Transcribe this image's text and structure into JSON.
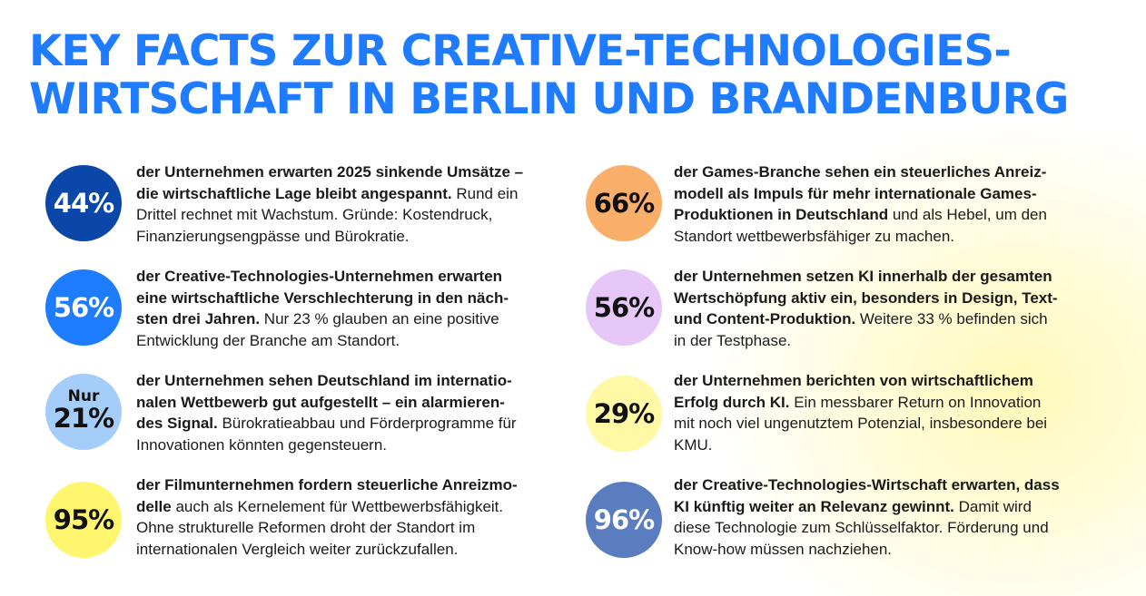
{
  "title": {
    "line1": "KEY FACTS ZUR CREATIVE-TECHNOLOGIES-",
    "line2": "WIRTSCHAFT IN BERLIN UND BRANDENBURG"
  },
  "facts": [
    {
      "value": "44%",
      "prefix": "",
      "circle_color": "#0a47a9",
      "value_color": "#ffffff",
      "lines": [
        {
          "bold": "der Unternehmen erwarten 2025 sinkende Umsätze –",
          "normal": ""
        },
        {
          "bold": "die wirtschaftliche Lage bleibt angespannt.",
          "normal": " Rund ein"
        },
        {
          "bold": "",
          "normal": "Drittel rechnet mit Wachstum. Gründe: Kostendruck,"
        },
        {
          "bold": "",
          "normal": "Finanzierungsengpässe und Bürokratie."
        }
      ]
    },
    {
      "value": "56%",
      "prefix": "",
      "circle_color": "#1e7cff",
      "value_color": "#ffffff",
      "lines": [
        {
          "bold": "der Creative-Technologies-Unternehmen erwarten",
          "normal": ""
        },
        {
          "bold": "eine wirtschaftliche Verschlechterung in den näch-",
          "normal": ""
        },
        {
          "bold": "sten drei Jahren.",
          "normal": " Nur 23 % glauben an eine positive"
        },
        {
          "bold": "",
          "normal": "Entwicklung der Branche am Standort."
        }
      ]
    },
    {
      "value": "21%",
      "prefix": "Nur",
      "circle_color": "#a5cdfa",
      "value_color": "#111111",
      "lines": [
        {
          "bold": "der Unternehmen sehen Deutschland im internatio-",
          "normal": ""
        },
        {
          "bold": "nalen Wettbewerb gut aufgestellt – ein alarmieren-",
          "normal": ""
        },
        {
          "bold": "des Signal.",
          "normal": " Bürokratieabbau und Förderprogramme für"
        },
        {
          "bold": "",
          "normal": "Innovationen könnten gegensteuern."
        }
      ]
    },
    {
      "value": "95%",
      "prefix": "",
      "circle_color": "#fff56e",
      "value_color": "#111111",
      "lines": [
        {
          "bold": "der Filmunternehmen fordern steuerliche Anreizmo-",
          "normal": ""
        },
        {
          "bold": "delle",
          "normal": " auch als Kernelement für Wettbewerbsfähigkeit."
        },
        {
          "bold": "",
          "normal": "Ohne strukturelle Reformen droht der Standort im"
        },
        {
          "bold": "",
          "normal": "internationalen Vergleich weiter zurückzufallen."
        }
      ]
    },
    {
      "value": "66%",
      "prefix": "",
      "circle_color": "#f9ae6a",
      "value_color": "#111111",
      "lines": [
        {
          "bold": "der Games-Branche sehen ein steuerliches Anreiz-",
          "normal": ""
        },
        {
          "bold": "modell als Impuls für mehr internationale Games-",
          "normal": ""
        },
        {
          "bold": "Produktionen in Deutschland",
          "normal": " und als Hebel, um den"
        },
        {
          "bold": "",
          "normal": "Standort wettbewerbsfähiger zu machen."
        }
      ]
    },
    {
      "value": "56%",
      "prefix": "",
      "circle_color": "#e7c6f8",
      "value_color": "#111111",
      "lines": [
        {
          "bold": "der Unternehmen setzen KI innerhalb der gesamten",
          "normal": ""
        },
        {
          "bold": "Wertschöpfung aktiv ein, besonders in Design, Text-",
          "normal": ""
        },
        {
          "bold": "und Content-Produktion.",
          "normal": " Weitere 33 % befinden sich"
        },
        {
          "bold": "",
          "normal": "in der Testphase."
        }
      ]
    },
    {
      "value": "29%",
      "prefix": "",
      "circle_color": "#fff9a6",
      "value_color": "#111111",
      "lines": [
        {
          "bold": "der Unternehmen berichten von wirtschaftlichem",
          "normal": ""
        },
        {
          "bold": "Erfolg durch KI.",
          "normal": " Ein messbarer Return on Innovation"
        },
        {
          "bold": "",
          "normal": "mit noch viel ungenutztem Potenzial, insbesondere bei"
        },
        {
          "bold": "",
          "normal": "KMU."
        }
      ]
    },
    {
      "value": "96%",
      "prefix": "",
      "circle_color": "#5a7dbf",
      "value_color": "#ffffff",
      "lines": [
        {
          "bold": "der Creative-Technologies-Wirtschaft erwarten, dass",
          "normal": ""
        },
        {
          "bold": "KI künftig weiter an Relevanz gewinnt.",
          "normal": " Damit wird"
        },
        {
          "bold": "",
          "normal": "diese Technologie zum Schlüsselfaktor. Förderung und"
        },
        {
          "bold": "",
          "normal": "Know-how müssen nachziehen."
        }
      ]
    }
  ]
}
